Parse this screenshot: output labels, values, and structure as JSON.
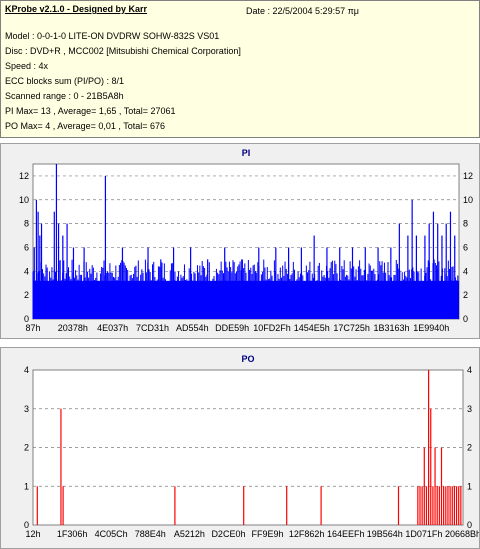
{
  "header": {
    "app_title": "KProbe v2.1.0 - Designed by Karr",
    "date": "Date : 22/5/2004 5:29:57 πμ",
    "lines": [
      "Model : 0-0-1-0 LITE-ON DVDRW SOHW-832S  VS01",
      "Disc : DVD+R , MCC002 [Mitsubishi Chemical Corporation]",
      "Speed : 4x",
      "ECC blocks sum (PI/PO) : 8/1",
      "Scanned range : 0 - 21B5A8h",
      "PI Max= 13 , Average= 1,65 , Total= 27061",
      "PO Max= 4 , Average= 0,01 , Total= 676"
    ]
  },
  "colors": {
    "pi": "#0000ff",
    "po": "#ff0000",
    "plot_bg": "#ffffff",
    "panel_bg": "#f0f0f0"
  },
  "chart_data": [
    {
      "type": "bar",
      "title": "PI",
      "ylim": [
        0,
        13
      ],
      "yticks": [
        0,
        2,
        4,
        6,
        8,
        10,
        12
      ],
      "xtick_labels": [
        "87h",
        "20378h",
        "4E037h",
        "7CD31h",
        "AD554h",
        "DDE59h",
        "10FD2Fh",
        "1454E5h",
        "17C725h",
        "1B3163h",
        "1E9940h"
      ],
      "grid": true,
      "spikes": [
        {
          "x": 0.003,
          "v": 6
        },
        {
          "x": 0.008,
          "v": 10
        },
        {
          "x": 0.012,
          "v": 9
        },
        {
          "x": 0.016,
          "v": 7
        },
        {
          "x": 0.02,
          "v": 8
        },
        {
          "x": 0.05,
          "v": 9
        },
        {
          "x": 0.055,
          "v": 13
        },
        {
          "x": 0.06,
          "v": 8
        },
        {
          "x": 0.07,
          "v": 7
        },
        {
          "x": 0.08,
          "v": 8
        },
        {
          "x": 0.095,
          "v": 6
        },
        {
          "x": 0.12,
          "v": 6
        },
        {
          "x": 0.17,
          "v": 12
        },
        {
          "x": 0.21,
          "v": 6
        },
        {
          "x": 0.27,
          "v": 6
        },
        {
          "x": 0.3,
          "v": 5
        },
        {
          "x": 0.33,
          "v": 6
        },
        {
          "x": 0.37,
          "v": 6
        },
        {
          "x": 0.41,
          "v": 5
        },
        {
          "x": 0.45,
          "v": 6
        },
        {
          "x": 0.49,
          "v": 5
        },
        {
          "x": 0.53,
          "v": 6
        },
        {
          "x": 0.57,
          "v": 6
        },
        {
          "x": 0.6,
          "v": 6
        },
        {
          "x": 0.63,
          "v": 6
        },
        {
          "x": 0.66,
          "v": 7
        },
        {
          "x": 0.69,
          "v": 6
        },
        {
          "x": 0.72,
          "v": 6
        },
        {
          "x": 0.75,
          "v": 6
        },
        {
          "x": 0.78,
          "v": 6
        },
        {
          "x": 0.81,
          "v": 6
        },
        {
          "x": 0.84,
          "v": 6
        },
        {
          "x": 0.86,
          "v": 8
        },
        {
          "x": 0.88,
          "v": 7
        },
        {
          "x": 0.89,
          "v": 10
        },
        {
          "x": 0.9,
          "v": 7
        },
        {
          "x": 0.92,
          "v": 7
        },
        {
          "x": 0.93,
          "v": 8
        },
        {
          "x": 0.94,
          "v": 9
        },
        {
          "x": 0.95,
          "v": 8
        },
        {
          "x": 0.96,
          "v": 7
        },
        {
          "x": 0.97,
          "v": 8
        },
        {
          "x": 0.98,
          "v": 9
        },
        {
          "x": 0.99,
          "v": 7
        }
      ],
      "baseline_level": 4
    },
    {
      "type": "bar",
      "title": "PO",
      "ylim": [
        0,
        4
      ],
      "yticks": [
        0,
        1,
        2,
        3,
        4
      ],
      "xtick_labels": [
        "12h",
        "1F306h",
        "4C05Ch",
        "788E4h",
        "A5212h",
        "D2CE0h",
        "FF9E9h",
        "12F862h",
        "164EEFh",
        "19B564h",
        "1D071Fh",
        "20668Bh"
      ],
      "grid": true,
      "spikes": [
        {
          "x": 0.01,
          "v": 1
        },
        {
          "x": 0.065,
          "v": 3
        },
        {
          "x": 0.07,
          "v": 1
        },
        {
          "x": 0.33,
          "v": 1
        },
        {
          "x": 0.49,
          "v": 1
        },
        {
          "x": 0.59,
          "v": 1
        },
        {
          "x": 0.67,
          "v": 1
        },
        {
          "x": 0.85,
          "v": 1
        },
        {
          "x": 0.895,
          "v": 1
        },
        {
          "x": 0.9,
          "v": 1
        },
        {
          "x": 0.905,
          "v": 1
        },
        {
          "x": 0.91,
          "v": 2
        },
        {
          "x": 0.915,
          "v": 1
        },
        {
          "x": 0.92,
          "v": 4
        },
        {
          "x": 0.925,
          "v": 3
        },
        {
          "x": 0.93,
          "v": 1
        },
        {
          "x": 0.935,
          "v": 2
        },
        {
          "x": 0.94,
          "v": 1
        },
        {
          "x": 0.945,
          "v": 1
        },
        {
          "x": 0.95,
          "v": 2
        },
        {
          "x": 0.955,
          "v": 1
        },
        {
          "x": 0.96,
          "v": 1
        },
        {
          "x": 0.965,
          "v": 1
        },
        {
          "x": 0.97,
          "v": 1
        },
        {
          "x": 0.975,
          "v": 1
        },
        {
          "x": 0.98,
          "v": 1
        },
        {
          "x": 0.985,
          "v": 1
        },
        {
          "x": 0.99,
          "v": 1
        },
        {
          "x": 0.995,
          "v": 1
        }
      ],
      "baseline_level": 0
    }
  ]
}
